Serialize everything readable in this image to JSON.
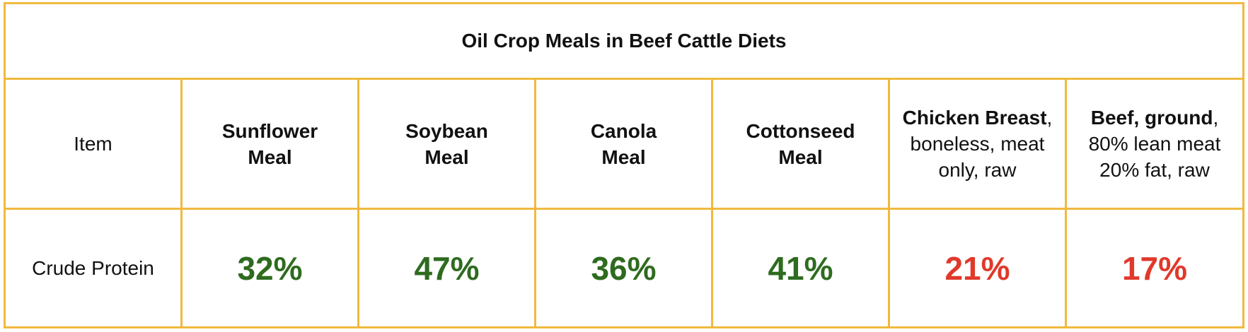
{
  "chart_data": {
    "type": "table",
    "title": "Oil Crop Meals in Beef Cattle Diets",
    "corner_label": "Item",
    "row_label": "Crude Protein",
    "columns": [
      {
        "bold": "Sunflower Meal",
        "rest": "",
        "value": "32%",
        "color": "#2e6b1f"
      },
      {
        "bold": "Soybean Meal",
        "rest": "",
        "value": "47%",
        "color": "#2e6b1f"
      },
      {
        "bold": "Canola Meal",
        "rest": "",
        "value": "36%",
        "color": "#2e6b1f"
      },
      {
        "bold": "Cottonseed Meal",
        "rest": "",
        "value": "41%",
        "color": "#2e6b1f"
      },
      {
        "bold": "Chicken Breast",
        "rest": ", boneless, meat only, raw",
        "value": "21%",
        "color": "#e0392b"
      },
      {
        "bold": "Beef, ground",
        "rest": ", 80% lean meat 20% fat, raw",
        "value": "17%",
        "color": "#e0392b"
      }
    ],
    "colors": {
      "border": "#f0b93e",
      "plant_meal_value": "#2e6b1f",
      "meat_value": "#e0392b"
    }
  }
}
